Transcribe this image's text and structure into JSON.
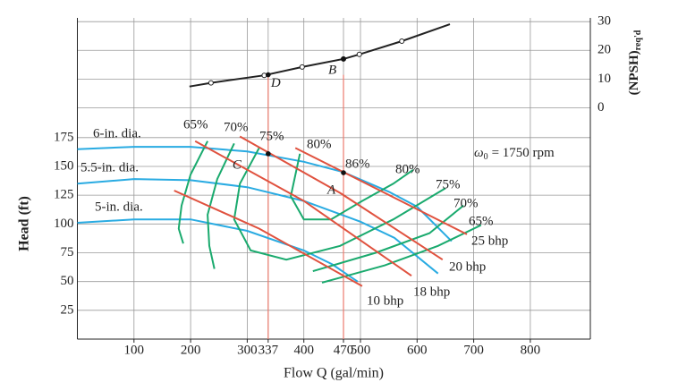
{
  "chart_data": {
    "type": "line",
    "x_label": "Flow Q (gal/min)",
    "y_label": "Head (ft)",
    "y2_label": "(NPSH)",
    "y2_label_sub": "req'd",
    "speed_label": {
      "symbol": "ω",
      "subscript": "0",
      "text": "= 1750 rpm"
    },
    "bep_label": "86%",
    "xlim": [
      0,
      906
    ],
    "ylim": [
      0,
      279
    ],
    "y2lim": [
      -80.5,
      31.3
    ],
    "xticks": [
      100,
      200,
      300,
      337,
      400,
      470,
      500,
      600,
      700,
      800
    ],
    "yticks": [
      25,
      50,
      75,
      100,
      125,
      150,
      175
    ],
    "y2ticks": [
      0,
      10,
      20,
      30
    ],
    "grid": true,
    "reference_lines": {
      "x": [
        337,
        470
      ],
      "color": "#ec7b6e"
    },
    "points": [
      {
        "label": "A",
        "x": 470,
        "y": 144.5
      },
      {
        "label": "B",
        "x": 470,
        "y": 17,
        "axis": "y2"
      },
      {
        "label": "C",
        "x": 337,
        "y": 161
      },
      {
        "label": "D",
        "x": 337,
        "y": 11.5,
        "axis": "y2"
      }
    ],
    "series": [
      {
        "name": "6-in. dia.",
        "color": "#29abe2",
        "x": [
          0,
          100,
          200,
          300,
          400,
          470,
          550,
          600,
          661
        ],
        "values": [
          165,
          167,
          167,
          163,
          154,
          145,
          128,
          115,
          85
        ]
      },
      {
        "name": "5.5-in. dia.",
        "color": "#29abe2",
        "x": [
          0,
          100,
          200,
          300,
          400,
          500,
          560,
          637
        ],
        "values": [
          135,
          139,
          138,
          132,
          120,
          102,
          88,
          57
        ]
      },
      {
        "name": "5-in. dia.",
        "color": "#29abe2",
        "x": [
          0,
          100,
          200,
          300,
          400,
          450,
          495
        ],
        "values": [
          101,
          104,
          104,
          94,
          77,
          65,
          50
        ]
      },
      {
        "name": "65%",
        "color": "#1aaa6e",
        "x": [
          230,
          200,
          184,
          179,
          187,
          null,
          432,
          543,
          637,
          713
        ],
        "values": [
          172,
          143,
          116,
          96,
          83,
          null,
          49,
          64,
          81,
          99
        ]
      },
      {
        "name": "70%",
        "color": "#1aaa6e",
        "x": [
          277,
          247,
          230,
          233,
          242,
          null,
          416,
          527,
          622,
          682
        ],
        "values": [
          170,
          139,
          108,
          81,
          61,
          null,
          59,
          75,
          92,
          116
        ]
      },
      {
        "name": "75%",
        "color": "#1aaa6e",
        "x": [
          321,
          287,
          277,
          306,
          369,
          464,
          558,
          650
        ],
        "values": [
          166,
          135,
          104,
          77,
          69,
          81,
          104,
          131
        ]
      },
      {
        "name": "80%",
        "color": "#1aaa6e",
        "x": [
          393,
          377,
          400,
          448,
          503,
          558,
          593
        ],
        "values": [
          161,
          124,
          104,
          104,
          120,
          135,
          147
        ]
      },
      {
        "name": "10 bhp",
        "color": "#e0523f",
        "x": [
          171,
          321,
          503
        ],
        "values": [
          129,
          96,
          46
        ]
      },
      {
        "name": "18 bhp",
        "color": "#e0523f",
        "x": [
          208,
          400,
          590
        ],
        "values": [
          172,
          120,
          55
        ]
      },
      {
        "name": "20 bhp",
        "color": "#e0523f",
        "x": [
          287,
          464,
          645
        ],
        "values": [
          176,
          127,
          69
        ]
      },
      {
        "name": "25 bhp",
        "color": "#e0523f",
        "x": [
          385,
          543,
          688
        ],
        "values": [
          166,
          127,
          91
        ]
      },
      {
        "color": "#222222",
        "axis": "y2",
        "x": [
          198,
          236,
          330,
          397,
          470,
          498,
          573,
          658
        ],
        "values": [
          7.4,
          8.7,
          11.3,
          14.2,
          17.0,
          18.6,
          23.2,
          29.1
        ]
      }
    ]
  }
}
